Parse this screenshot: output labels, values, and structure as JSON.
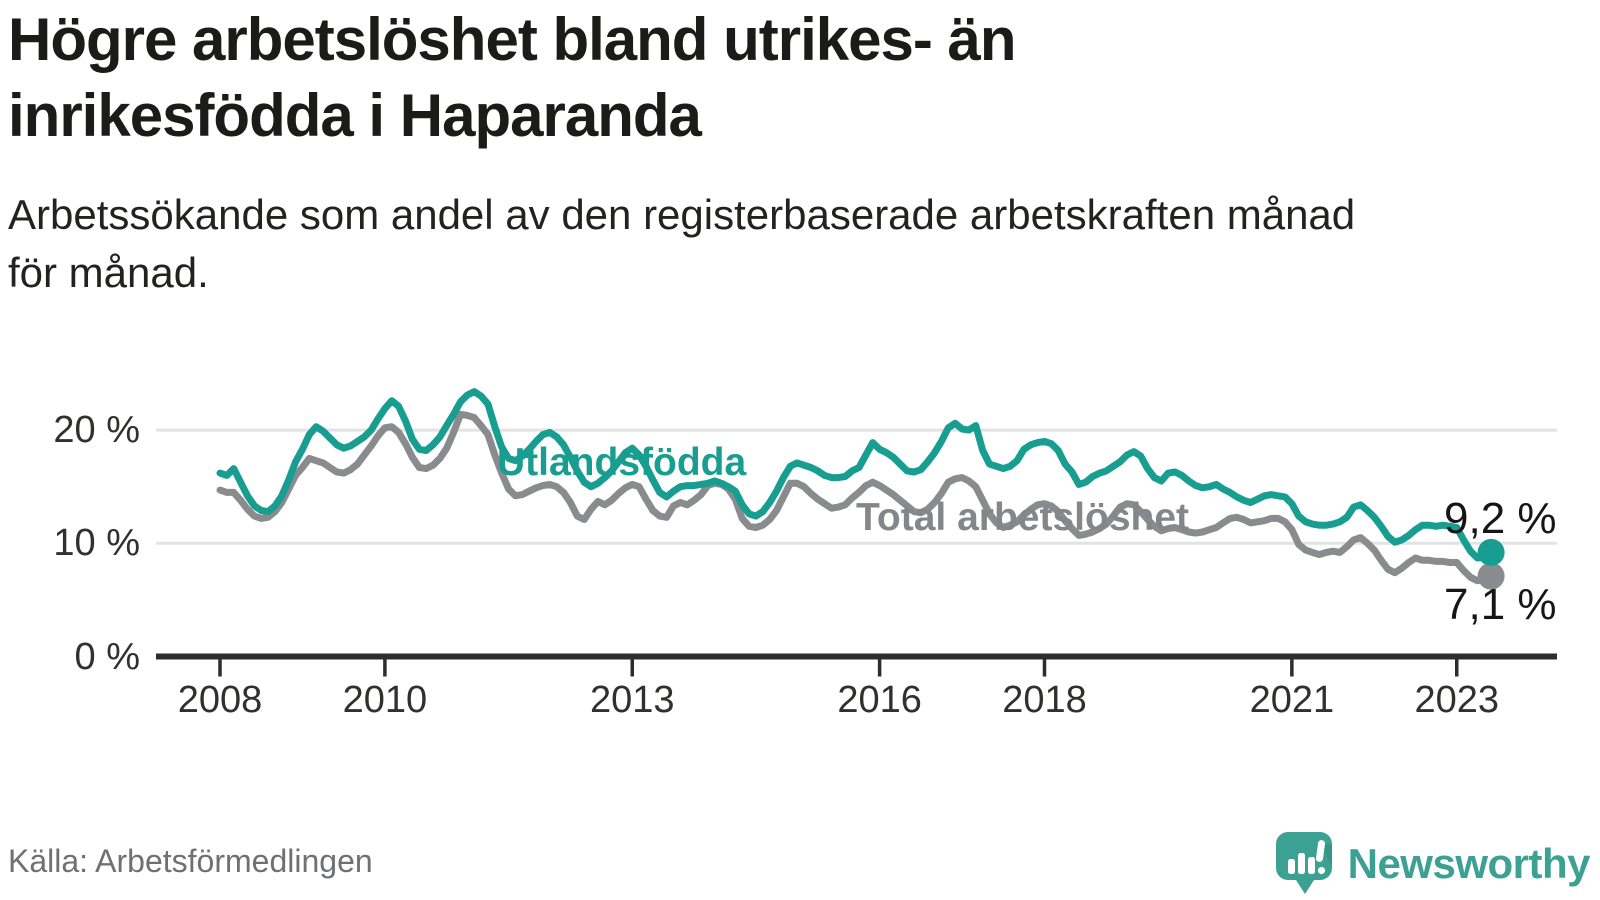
{
  "header": {
    "title": "Högre arbetslöshet bland utrikes- än inrikesfödda i Haparanda",
    "title_lines": [
      "Högre arbetslöshet bland utrikes- än",
      "inrikesfödda i Haparanda"
    ],
    "subtitle": "Arbetssökande som andel av den registerbaserade arbetskraften månad för månad.",
    "subtitle_lines": [
      "Arbetssökande som andel av den registerbaserade arbetskraften månad",
      "för månad."
    ]
  },
  "chart_data": {
    "type": "line",
    "unit": "%",
    "x_start": "2008-01",
    "x_end": "2023-06",
    "x_frequency": "monthly",
    "x_tick_years": [
      2008,
      2010,
      2013,
      2016,
      2018,
      2021,
      2023
    ],
    "y_ticks": [
      {
        "value": 0,
        "label": "0 %"
      },
      {
        "value": 10,
        "label": "10 %"
      },
      {
        "value": 20,
        "label": "20 %"
      }
    ],
    "ylim": [
      0,
      25.5
    ],
    "grid": "horizontal",
    "legend_position": "inline-labels",
    "series": [
      {
        "name": "Utlandsfödda",
        "color": "#189e90",
        "end_label": "9,2 %",
        "last_value": 9.2,
        "values": [
          16.2,
          16.0,
          16.6,
          15.4,
          14.2,
          13.3,
          12.9,
          12.8,
          13.3,
          14.2,
          15.6,
          17.2,
          18.3,
          19.6,
          20.3,
          19.9,
          19.3,
          18.7,
          18.4,
          18.6,
          19.0,
          19.4,
          20.0,
          21.0,
          21.9,
          22.6,
          22.1,
          20.8,
          19.2,
          18.3,
          18.2,
          18.7,
          19.4,
          20.4,
          21.4,
          22.5,
          23.1,
          23.4,
          23.0,
          22.3,
          20.3,
          18.5,
          17.5,
          17.3,
          17.7,
          18.3,
          19.0,
          19.6,
          19.8,
          19.4,
          18.7,
          17.6,
          16.4,
          15.4,
          15.0,
          15.3,
          15.8,
          16.4,
          17.2,
          18.0,
          18.4,
          17.8,
          16.8,
          15.6,
          14.5,
          14.1,
          14.6,
          15.0,
          15.1,
          15.1,
          15.2,
          15.3,
          15.5,
          15.3,
          15.0,
          14.6,
          13.4,
          12.6,
          12.4,
          12.8,
          13.6,
          14.6,
          15.8,
          16.8,
          17.1,
          16.9,
          16.7,
          16.4,
          16.0,
          15.8,
          15.8,
          15.9,
          16.4,
          16.7,
          17.8,
          18.9,
          18.3,
          18.0,
          17.6,
          17.0,
          16.4,
          16.3,
          16.5,
          17.2,
          18.0,
          19.0,
          20.2,
          20.6,
          20.1,
          20.0,
          20.4,
          18.2,
          17.0,
          16.8,
          16.6,
          16.8,
          17.3,
          18.3,
          18.7,
          18.9,
          19.0,
          18.8,
          18.2,
          17.0,
          16.3,
          15.2,
          15.4,
          15.9,
          16.2,
          16.4,
          16.8,
          17.2,
          17.8,
          18.1,
          17.7,
          16.6,
          15.8,
          15.5,
          16.2,
          16.3,
          16.0,
          15.5,
          15.1,
          14.9,
          15.0,
          15.2,
          14.8,
          14.5,
          14.1,
          13.8,
          13.6,
          13.9,
          14.2,
          14.3,
          14.2,
          14.1,
          13.5,
          12.4,
          11.9,
          11.7,
          11.6,
          11.6,
          11.7,
          11.9,
          12.3,
          13.2,
          13.4,
          12.9,
          12.3,
          11.5,
          10.6,
          10.1,
          10.3,
          10.7,
          11.2,
          11.6,
          11.6,
          11.5,
          11.6,
          11.5,
          11.4,
          10.3,
          9.3,
          8.7,
          8.8,
          9.2
        ]
      },
      {
        "name": "Total arbetslöshet",
        "color": "#8a8b8f",
        "end_label": "7,1 %",
        "last_value": 7.1,
        "values": [
          14.7,
          14.5,
          14.5,
          13.8,
          13.0,
          12.4,
          12.2,
          12.3,
          12.8,
          13.6,
          14.8,
          16.0,
          16.7,
          17.5,
          17.3,
          17.1,
          16.7,
          16.3,
          16.2,
          16.5,
          17.0,
          17.8,
          18.6,
          19.5,
          20.2,
          20.3,
          19.8,
          18.8,
          17.6,
          16.7,
          16.6,
          16.9,
          17.5,
          18.4,
          19.8,
          21.4,
          21.3,
          21.1,
          20.4,
          19.6,
          17.8,
          16.2,
          14.8,
          14.2,
          14.3,
          14.6,
          14.9,
          15.1,
          15.2,
          15.0,
          14.5,
          13.6,
          12.4,
          12.1,
          13.0,
          13.7,
          13.4,
          13.8,
          14.4,
          14.9,
          15.2,
          15.0,
          13.9,
          12.9,
          12.4,
          12.3,
          13.3,
          13.6,
          13.4,
          13.8,
          14.3,
          15.1,
          15.3,
          15.2,
          14.8,
          13.9,
          12.2,
          11.5,
          11.4,
          11.6,
          12.1,
          12.9,
          14.1,
          15.3,
          15.3,
          15.0,
          14.4,
          13.9,
          13.5,
          13.1,
          13.2,
          13.4,
          14.0,
          14.5,
          15.1,
          15.4,
          15.1,
          14.7,
          14.3,
          13.8,
          13.3,
          12.8,
          12.7,
          13.0,
          13.6,
          14.4,
          15.4,
          15.7,
          15.8,
          15.5,
          15.0,
          13.8,
          12.6,
          11.8,
          11.4,
          11.6,
          11.9,
          12.5,
          13.0,
          13.4,
          13.5,
          13.3,
          12.8,
          12.0,
          11.3,
          10.7,
          10.8,
          11.0,
          11.3,
          11.7,
          12.4,
          13.2,
          13.5,
          13.4,
          12.8,
          12.1,
          11.5,
          11.1,
          11.3,
          11.4,
          11.2,
          11.0,
          10.9,
          11.0,
          11.2,
          11.4,
          11.8,
          12.2,
          12.3,
          12.1,
          11.8,
          11.9,
          12.0,
          12.2,
          12.2,
          11.9,
          11.2,
          9.9,
          9.4,
          9.2,
          9.0,
          9.2,
          9.3,
          9.2,
          9.7,
          10.3,
          10.5,
          10.0,
          9.4,
          8.5,
          7.7,
          7.4,
          7.8,
          8.3,
          8.7,
          8.5,
          8.5,
          8.4,
          8.4,
          8.3,
          8.3,
          7.6,
          7.0,
          6.7,
          6.8,
          7.1
        ]
      }
    ]
  },
  "footer": {
    "source": "Källa: Arbetsförmedlingen",
    "brand": "Newsworthy",
    "logo_icon": "newsworthy-speech-bubble-bar-chart-icon"
  },
  "colors": {
    "teal_line": "#189e90",
    "gray_line": "#8a8b8f",
    "title_text": "#1b1b19",
    "axis": "#2d2d30",
    "gridline": "#e3e3e3",
    "value_label_text": "#161616",
    "source_text": "#6f7076",
    "brand_teal": "#3ca093",
    "background": "#ffffff"
  }
}
